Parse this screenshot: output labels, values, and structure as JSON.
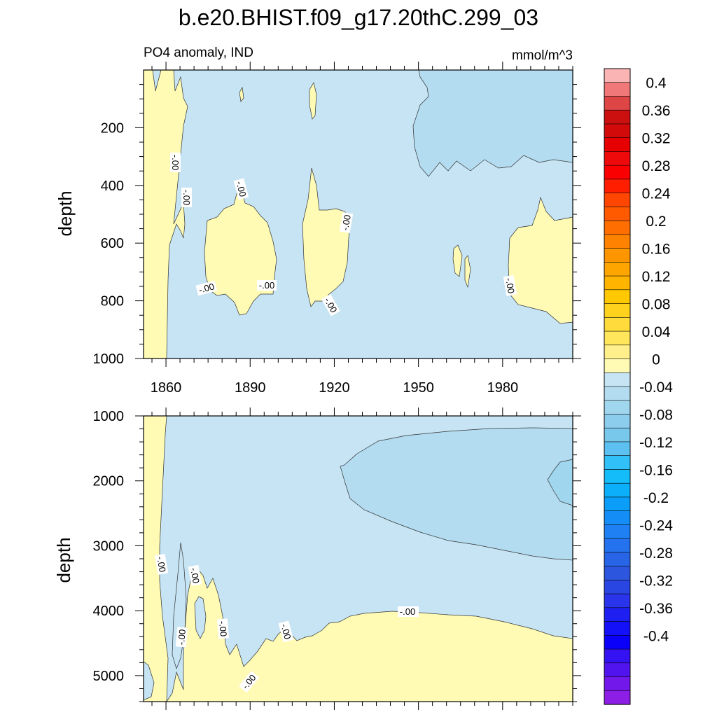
{
  "chart_data": {
    "type": "contour",
    "title": "b.e20.BHIST.f09_g17.20thC.299_03",
    "left_string": "PO4 anomaly, IND",
    "right_string": "mmol/m^3",
    "variable": "PO4 anomaly",
    "region": "IND",
    "units": "mmol/m^3",
    "x_ticks": [
      1860,
      1890,
      1920,
      1950,
      1980
    ],
    "xlim": [
      1852,
      2005
    ],
    "contour_line_label": "-.00",
    "panels": [
      {
        "name": "upper",
        "ylabel": "depth",
        "ylim": [
          0,
          1000
        ],
        "y_ticks": [
          200,
          400,
          600,
          800,
          1000
        ],
        "y_inverted": true,
        "description": "mostly slightly negative (-0.00 to -0.02); small positive patches near 1860, 1885, 1915, 1985+; more negative (-0.02 to -0.04) in upper 300 m after 1950"
      },
      {
        "name": "lower",
        "ylabel": "depth",
        "ylim": [
          1000,
          5400
        ],
        "y_ticks": [
          1000,
          2000,
          3000,
          4000,
          5000
        ],
        "y_inverted": true,
        "description": "positive (0 to 0.02) below ~4100 m and along early years; negative lobe (-0.02 to -0.04) between ~1200 and 3200 m after ~1925"
      }
    ],
    "colorbar": {
      "labels": [
        "0.4",
        "0.36",
        "0.32",
        "0.28",
        "0.24",
        "0.2",
        "0.16",
        "0.12",
        "0.08",
        "0.04",
        "0",
        "-0.04",
        "-0.08",
        "-0.12",
        "-0.16",
        "-0.2",
        "-0.24",
        "-0.28",
        "-0.32",
        "-0.36",
        "-0.4"
      ],
      "colors": [
        "#fbb4b4",
        "#f07878",
        "#de4646",
        "#cc1010",
        "#d20a0a",
        "#e60000",
        "#ee0a0a",
        "#fa0000",
        "#ff1e00",
        "#ff4600",
        "#ff5a00",
        "#ff6e00",
        "#ff8200",
        "#ff9600",
        "#ffa500",
        "#ffb400",
        "#ffc800",
        "#ffd21e",
        "#ffdc3c",
        "#ffe65a",
        "#fff08c",
        "#fffab4",
        "#c6e4f4",
        "#b4dcf0",
        "#a0d6ee",
        "#8ccced",
        "#78c8ec",
        "#5cc0f0",
        "#32c0f8",
        "#14bcfa",
        "#0cb0fa",
        "#0a9ef8",
        "#148ef6",
        "#1e80f2",
        "#2472ee",
        "#2864e6",
        "#2c56de",
        "#2a46e2",
        "#2a34ea",
        "#1e20f2",
        "#1410f8",
        "#0a00fa",
        "#3412f2",
        "#5214ee",
        "#7218ea",
        "#8c1ee6"
      ]
    }
  }
}
